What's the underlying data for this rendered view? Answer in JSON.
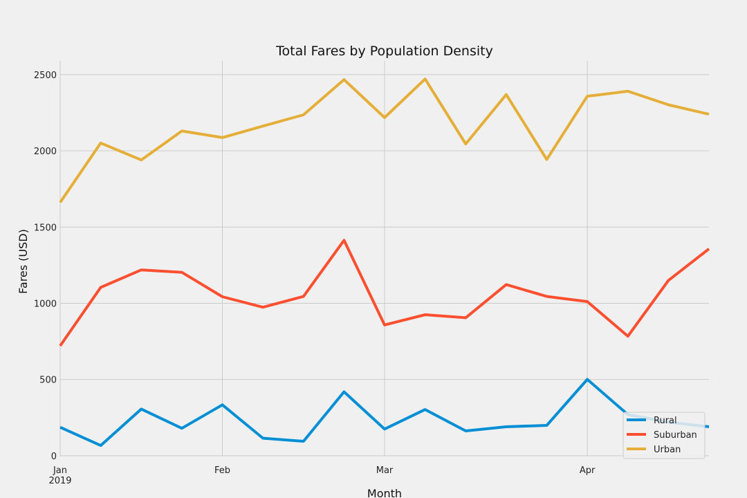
{
  "chart_data": {
    "type": "line",
    "title": "Total Fares by Population Density",
    "xlabel": "Month",
    "ylabel": "Fares (USD)",
    "ylim": [
      -5,
      2590
    ],
    "y_ticks": [
      0,
      500,
      1000,
      1500,
      2000,
      2500
    ],
    "x_range": [
      "2019-01-06",
      "2019-04-28"
    ],
    "x_ticks": [
      {
        "date": "2019-01-06",
        "label": "Jan",
        "sublabel": "2019"
      },
      {
        "date": "2019-02-03",
        "label": "Feb",
        "sublabel": ""
      },
      {
        "date": "2019-03-03",
        "label": "Mar",
        "sublabel": ""
      },
      {
        "date": "2019-04-07",
        "label": "Apr",
        "sublabel": ""
      }
    ],
    "x": [
      "2019-01-06",
      "2019-01-13",
      "2019-01-20",
      "2019-01-27",
      "2019-02-03",
      "2019-02-10",
      "2019-02-17",
      "2019-02-24",
      "2019-03-03",
      "2019-03-10",
      "2019-03-17",
      "2019-03-24",
      "2019-03-31",
      "2019-04-07",
      "2019-04-14",
      "2019-04-21",
      "2019-04-28"
    ],
    "series": [
      {
        "name": "Rural",
        "color": "#008fd5",
        "values": [
          187,
          67,
          306,
          180,
          334,
          115,
          95,
          419,
          175,
          303,
          163,
          190,
          199,
          501,
          270,
          220,
          190
        ]
      },
      {
        "name": "Suburban",
        "color": "#fc4f30",
        "values": [
          721,
          1104,
          1219,
          1203,
          1043,
          974,
          1045,
          1413,
          858,
          925,
          905,
          1123,
          1045,
          1011,
          784,
          1150,
          1357
        ]
      },
      {
        "name": "Urban",
        "color": "#e5ae38",
        "values": [
          1662,
          2051,
          1940,
          2130,
          2087,
          2162,
          2236,
          2467,
          2218,
          2471,
          2045,
          2369,
          1943,
          2358,
          2391,
          2302,
          2240
        ]
      }
    ],
    "grid": true,
    "legend_position": "lower-right"
  }
}
